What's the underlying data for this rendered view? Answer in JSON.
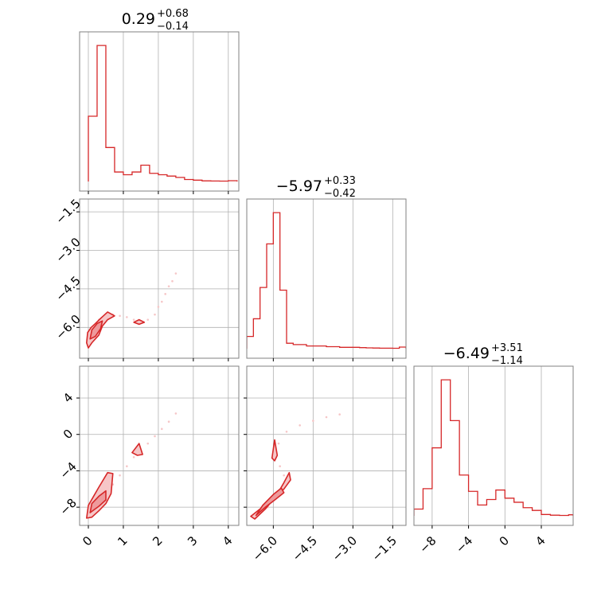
{
  "colors": {
    "series": "#d62728",
    "fill_light": "#f6c6c7",
    "fill_mid": "#ee9a9c",
    "grid": "#b0b0b0",
    "axes": "#808080",
    "background": "#ffffff"
  },
  "chart_data": [
    {
      "id": "hist-p1",
      "type": "histogram",
      "title": {
        "median": "0.29",
        "plus": "+0.68",
        "minus": "−0.14"
      },
      "xlim": [
        -0.25,
        4.3
      ],
      "ylim": [
        0,
        1.0
      ],
      "grid": true,
      "edges": [
        0,
        0.25,
        0.5,
        0.75,
        1.0,
        1.25,
        1.5,
        1.75,
        2.0,
        2.25,
        2.5,
        2.75,
        3.0,
        3.25,
        3.5,
        3.75,
        4.0,
        4.25
      ],
      "values": [
        0.48,
        1.0,
        0.25,
        0.07,
        0.05,
        0.07,
        0.12,
        0.06,
        0.05,
        0.04,
        0.03,
        0.015,
        0.01,
        0.005,
        0.004,
        0.003,
        0.006
      ],
      "xticks": [],
      "yticks": []
    },
    {
      "id": "hist-p2",
      "type": "histogram",
      "title": {
        "median": "−5.97",
        "plus": "+0.33",
        "minus": "−0.42"
      },
      "xlim": [
        -7.0,
        -1.0
      ],
      "ylim": [
        0,
        1.0
      ],
      "grid": true,
      "edges": [
        -7.0,
        -6.75,
        -6.5,
        -6.25,
        -6.0,
        -5.75,
        -5.5,
        -5.25,
        -5.0,
        -4.75,
        -4.5,
        -4.25,
        -4.0,
        -3.75,
        -3.5,
        -3.25,
        -3.0,
        -2.75,
        -2.5,
        -2.25,
        -2.0,
        -1.75,
        -1.5,
        -1.25,
        -1.0
      ],
      "values": [
        0.09,
        0.22,
        0.45,
        0.77,
        1.0,
        0.43,
        0.04,
        0.03,
        0.03,
        0.02,
        0.02,
        0.02,
        0.015,
        0.015,
        0.01,
        0.01,
        0.01,
        0.008,
        0.006,
        0.005,
        0.004,
        0.004,
        0.003,
        0.012
      ],
      "xticks": [],
      "yticks": []
    },
    {
      "id": "hist-p3",
      "type": "histogram",
      "title": {
        "median": "−6.49",
        "plus": "+3.51",
        "minus": "−1.14"
      },
      "xlim": [
        -10.0,
        7.5
      ],
      "ylim": [
        0,
        1.0
      ],
      "grid": true,
      "edges": [
        -10,
        -9,
        -8,
        -7,
        -6,
        -5,
        -4,
        -3,
        -2,
        -1,
        0,
        1,
        2,
        3,
        4,
        5,
        6,
        7,
        7.5
      ],
      "values": [
        0.05,
        0.2,
        0.5,
        1.0,
        0.7,
        0.3,
        0.18,
        0.08,
        0.12,
        0.19,
        0.13,
        0.1,
        0.06,
        0.04,
        0.01,
        0.005,
        0.003,
        0.008
      ],
      "xticks": [
        "−8",
        "−4",
        "0",
        "4"
      ],
      "xtick_values": [
        -8,
        -4,
        0,
        4
      ],
      "yticks": []
    },
    {
      "id": "scatter-p1-p2",
      "type": "scatter",
      "xlim": [
        -0.25,
        4.3
      ],
      "ylim": [
        -7.2,
        -1.0
      ],
      "grid": true,
      "yticks": [
        "−1.5",
        "−3.0",
        "−4.5",
        "−6.0"
      ],
      "ytick_values": [
        -1.5,
        -3.0,
        -4.5,
        -6.0
      ],
      "xticks": [],
      "points": [
        [
          0.3,
          -5.7
        ],
        [
          0.5,
          -5.6
        ],
        [
          0.7,
          -5.5
        ],
        [
          0.9,
          -5.55
        ],
        [
          1.1,
          -5.6
        ],
        [
          1.3,
          -5.7
        ],
        [
          1.5,
          -5.78
        ],
        [
          1.7,
          -5.7
        ],
        [
          1.9,
          -5.5
        ],
        [
          2.0,
          -5.2
        ],
        [
          2.1,
          -5.0
        ],
        [
          2.2,
          -4.7
        ],
        [
          2.3,
          -4.4
        ],
        [
          2.4,
          -4.2
        ],
        [
          2.5,
          -3.9
        ],
        [
          0.15,
          -6.2
        ],
        [
          0.1,
          -6.5
        ],
        [
          0.2,
          -5.9
        ]
      ],
      "contours": [
        {
          "level": "outer",
          "points": [
            [
              -0.05,
              -6.6
            ],
            [
              -0.02,
              -6.2
            ],
            [
              0.08,
              -6.0
            ],
            [
              0.2,
              -5.85
            ],
            [
              0.35,
              -5.65
            ],
            [
              0.55,
              -5.4
            ],
            [
              0.75,
              -5.55
            ],
            [
              0.55,
              -5.7
            ],
            [
              0.4,
              -5.95
            ],
            [
              0.3,
              -6.3
            ],
            [
              0.1,
              -6.6
            ],
            [
              0.0,
              -6.8
            ]
          ]
        },
        {
          "level": "inner",
          "points": [
            [
              0.05,
              -6.45
            ],
            [
              0.1,
              -6.1
            ],
            [
              0.25,
              -5.85
            ],
            [
              0.4,
              -5.75
            ],
            [
              0.35,
              -6.05
            ],
            [
              0.2,
              -6.35
            ]
          ]
        },
        {
          "level": "outer",
          "points": [
            [
              1.3,
              -5.8
            ],
            [
              1.45,
              -5.7
            ],
            [
              1.6,
              -5.8
            ],
            [
              1.45,
              -5.88
            ]
          ]
        }
      ]
    },
    {
      "id": "scatter-p1-p3",
      "type": "scatter",
      "xlim": [
        -0.25,
        4.3
      ],
      "ylim": [
        -10.0,
        7.5
      ],
      "grid": true,
      "yticks": [
        "4",
        "0",
        "−4",
        "−8"
      ],
      "ytick_values": [
        4,
        0,
        -4,
        -8
      ],
      "xticks": [
        "0",
        "1",
        "2",
        "3",
        "4"
      ],
      "xtick_values": [
        0,
        1,
        2,
        3,
        4
      ],
      "points": [
        [
          0.1,
          -8.5
        ],
        [
          0.3,
          -7.5
        ],
        [
          0.5,
          -6.5
        ],
        [
          0.7,
          -5.5
        ],
        [
          0.9,
          -4.5
        ],
        [
          1.1,
          -3.5
        ],
        [
          1.3,
          -2.5
        ],
        [
          1.5,
          -1.8
        ],
        [
          1.7,
          -1.0
        ],
        [
          1.9,
          -0.2
        ],
        [
          2.1,
          0.6
        ],
        [
          2.3,
          1.4
        ],
        [
          2.5,
          2.3
        ],
        [
          0.2,
          -8.0
        ]
      ],
      "contours": [
        {
          "level": "outer",
          "points": [
            [
              -0.05,
              -9.2
            ],
            [
              0.0,
              -7.8
            ],
            [
              0.15,
              -6.8
            ],
            [
              0.3,
              -5.8
            ],
            [
              0.55,
              -4.2
            ],
            [
              0.7,
              -4.3
            ],
            [
              0.65,
              -6.5
            ],
            [
              0.5,
              -7.6
            ],
            [
              0.3,
              -8.4
            ],
            [
              0.1,
              -9.1
            ]
          ]
        },
        {
          "level": "inner",
          "points": [
            [
              0.05,
              -8.6
            ],
            [
              0.1,
              -7.6
            ],
            [
              0.3,
              -6.8
            ],
            [
              0.5,
              -6.2
            ],
            [
              0.5,
              -7.2
            ],
            [
              0.3,
              -7.9
            ]
          ]
        },
        {
          "level": "outer",
          "points": [
            [
              1.25,
              -2.0
            ],
            [
              1.45,
              -1.0
            ],
            [
              1.55,
              -2.2
            ],
            [
              1.4,
              -2.3
            ]
          ]
        }
      ]
    },
    {
      "id": "scatter-p2-p3",
      "type": "scatter",
      "xlim": [
        -7.0,
        -1.0
      ],
      "ylim": [
        -10.0,
        7.5
      ],
      "grid": true,
      "yticks": [],
      "xticks": [
        "−6.0",
        "−4.5",
        "−3.0",
        "−1.5"
      ],
      "xtick_values": [
        -6.0,
        -4.5,
        -3.0,
        -1.5
      ],
      "points": [
        [
          -6.8,
          -9.0
        ],
        [
          -6.5,
          -8.6
        ],
        [
          -6.2,
          -8.0
        ],
        [
          -5.9,
          -7.0
        ],
        [
          -5.7,
          -6.0
        ],
        [
          -5.6,
          -4.5
        ],
        [
          -5.75,
          -3.5
        ],
        [
          -5.9,
          -2.5
        ],
        [
          -5.8,
          -1.0
        ],
        [
          -5.5,
          0.3
        ],
        [
          -5.0,
          1.0
        ],
        [
          -4.5,
          1.5
        ],
        [
          -4.0,
          1.9
        ],
        [
          -3.5,
          2.2
        ]
      ],
      "contours": [
        {
          "level": "outer",
          "points": [
            [
              -6.85,
              -9.0
            ],
            [
              -6.5,
              -8.2
            ],
            [
              -6.0,
              -7.2
            ],
            [
              -5.6,
              -6.0
            ],
            [
              -5.35,
              -5.0
            ],
            [
              -5.4,
              -4.2
            ],
            [
              -5.6,
              -5.3
            ],
            [
              -5.9,
              -6.8
            ],
            [
              -6.3,
              -8.2
            ],
            [
              -6.7,
              -9.3
            ]
          ]
        },
        {
          "level": "inner",
          "points": [
            [
              -6.65,
              -8.9
            ],
            [
              -6.3,
              -8.0
            ],
            [
              -5.9,
              -7.1
            ],
            [
              -5.6,
              -6.4
            ],
            [
              -5.7,
              -5.9
            ],
            [
              -6.0,
              -6.6
            ],
            [
              -6.4,
              -7.8
            ]
          ]
        },
        {
          "level": "outer",
          "points": [
            [
              -6.05,
              -2.6
            ],
            [
              -5.95,
              -0.6
            ],
            [
              -5.85,
              -2.3
            ],
            [
              -5.95,
              -2.9
            ]
          ]
        }
      ]
    }
  ]
}
